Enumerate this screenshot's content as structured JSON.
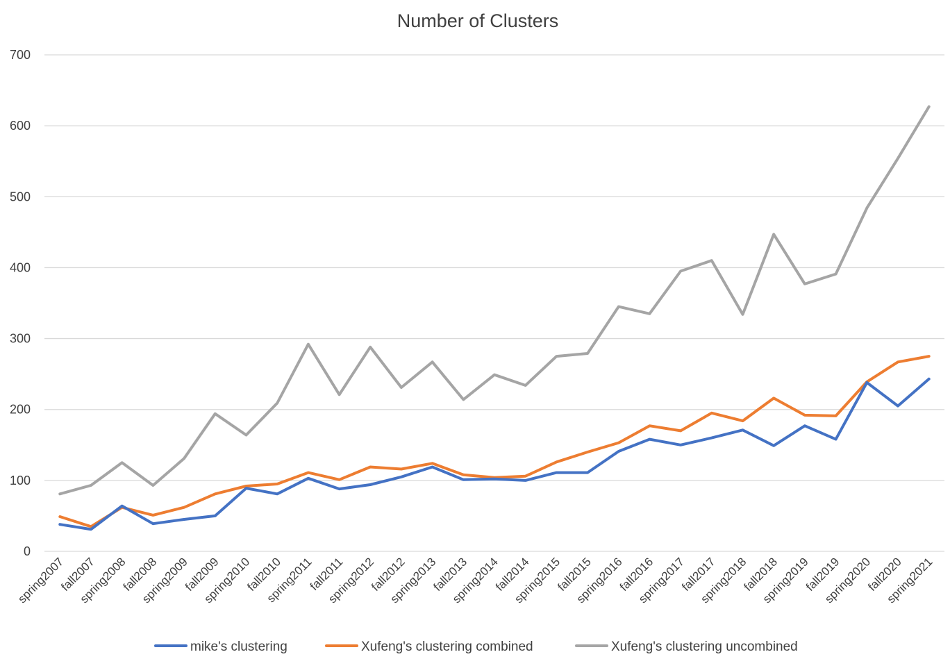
{
  "chart_data": {
    "type": "line",
    "title": "Number of Clusters",
    "xlabel": "",
    "ylabel": "",
    "ylim": [
      0,
      700
    ],
    "yticks": [
      0,
      100,
      200,
      300,
      400,
      500,
      600,
      700
    ],
    "grid": "horizontal",
    "legend_position": "bottom",
    "categories": [
      "spring2007",
      "fall2007",
      "spring2008",
      "fall2008",
      "spring2009",
      "fall2009",
      "spring2010",
      "fall2010",
      "spring2011",
      "fall2011",
      "spring2012",
      "fall2012",
      "spring2013",
      "fall2013",
      "spring2014",
      "fall2014",
      "spring2015",
      "fall2015",
      "spring2016",
      "fall2016",
      "spring2017",
      "fall2017",
      "spring2018",
      "fall2018",
      "spring2019",
      "fall2019",
      "spring2020",
      "fall2020",
      "spring2021"
    ],
    "series": [
      {
        "name": "mike's clustering",
        "color": "#4472c4",
        "values": [
          38,
          31,
          64,
          39,
          45,
          50,
          89,
          81,
          103,
          88,
          94,
          105,
          119,
          101,
          102,
          100,
          111,
          111,
          141,
          158,
          150,
          160,
          171,
          149,
          177,
          158,
          238,
          205,
          243
        ]
      },
      {
        "name": "Xufeng's clustering combined",
        "color": "#ed7d31",
        "values": [
          49,
          35,
          62,
          51,
          62,
          81,
          92,
          95,
          111,
          101,
          119,
          116,
          124,
          108,
          104,
          106,
          126,
          140,
          153,
          177,
          170,
          195,
          184,
          216,
          192,
          191,
          239,
          267,
          275
        ]
      },
      {
        "name": "Xufeng's clustering uncombined",
        "color": "#a5a5a5",
        "values": [
          81,
          93,
          125,
          93,
          131,
          194,
          164,
          209,
          292,
          221,
          288,
          231,
          267,
          214,
          249,
          234,
          275,
          279,
          345,
          335,
          395,
          410,
          334,
          447,
          377,
          391,
          484,
          554,
          627
        ]
      }
    ]
  }
}
